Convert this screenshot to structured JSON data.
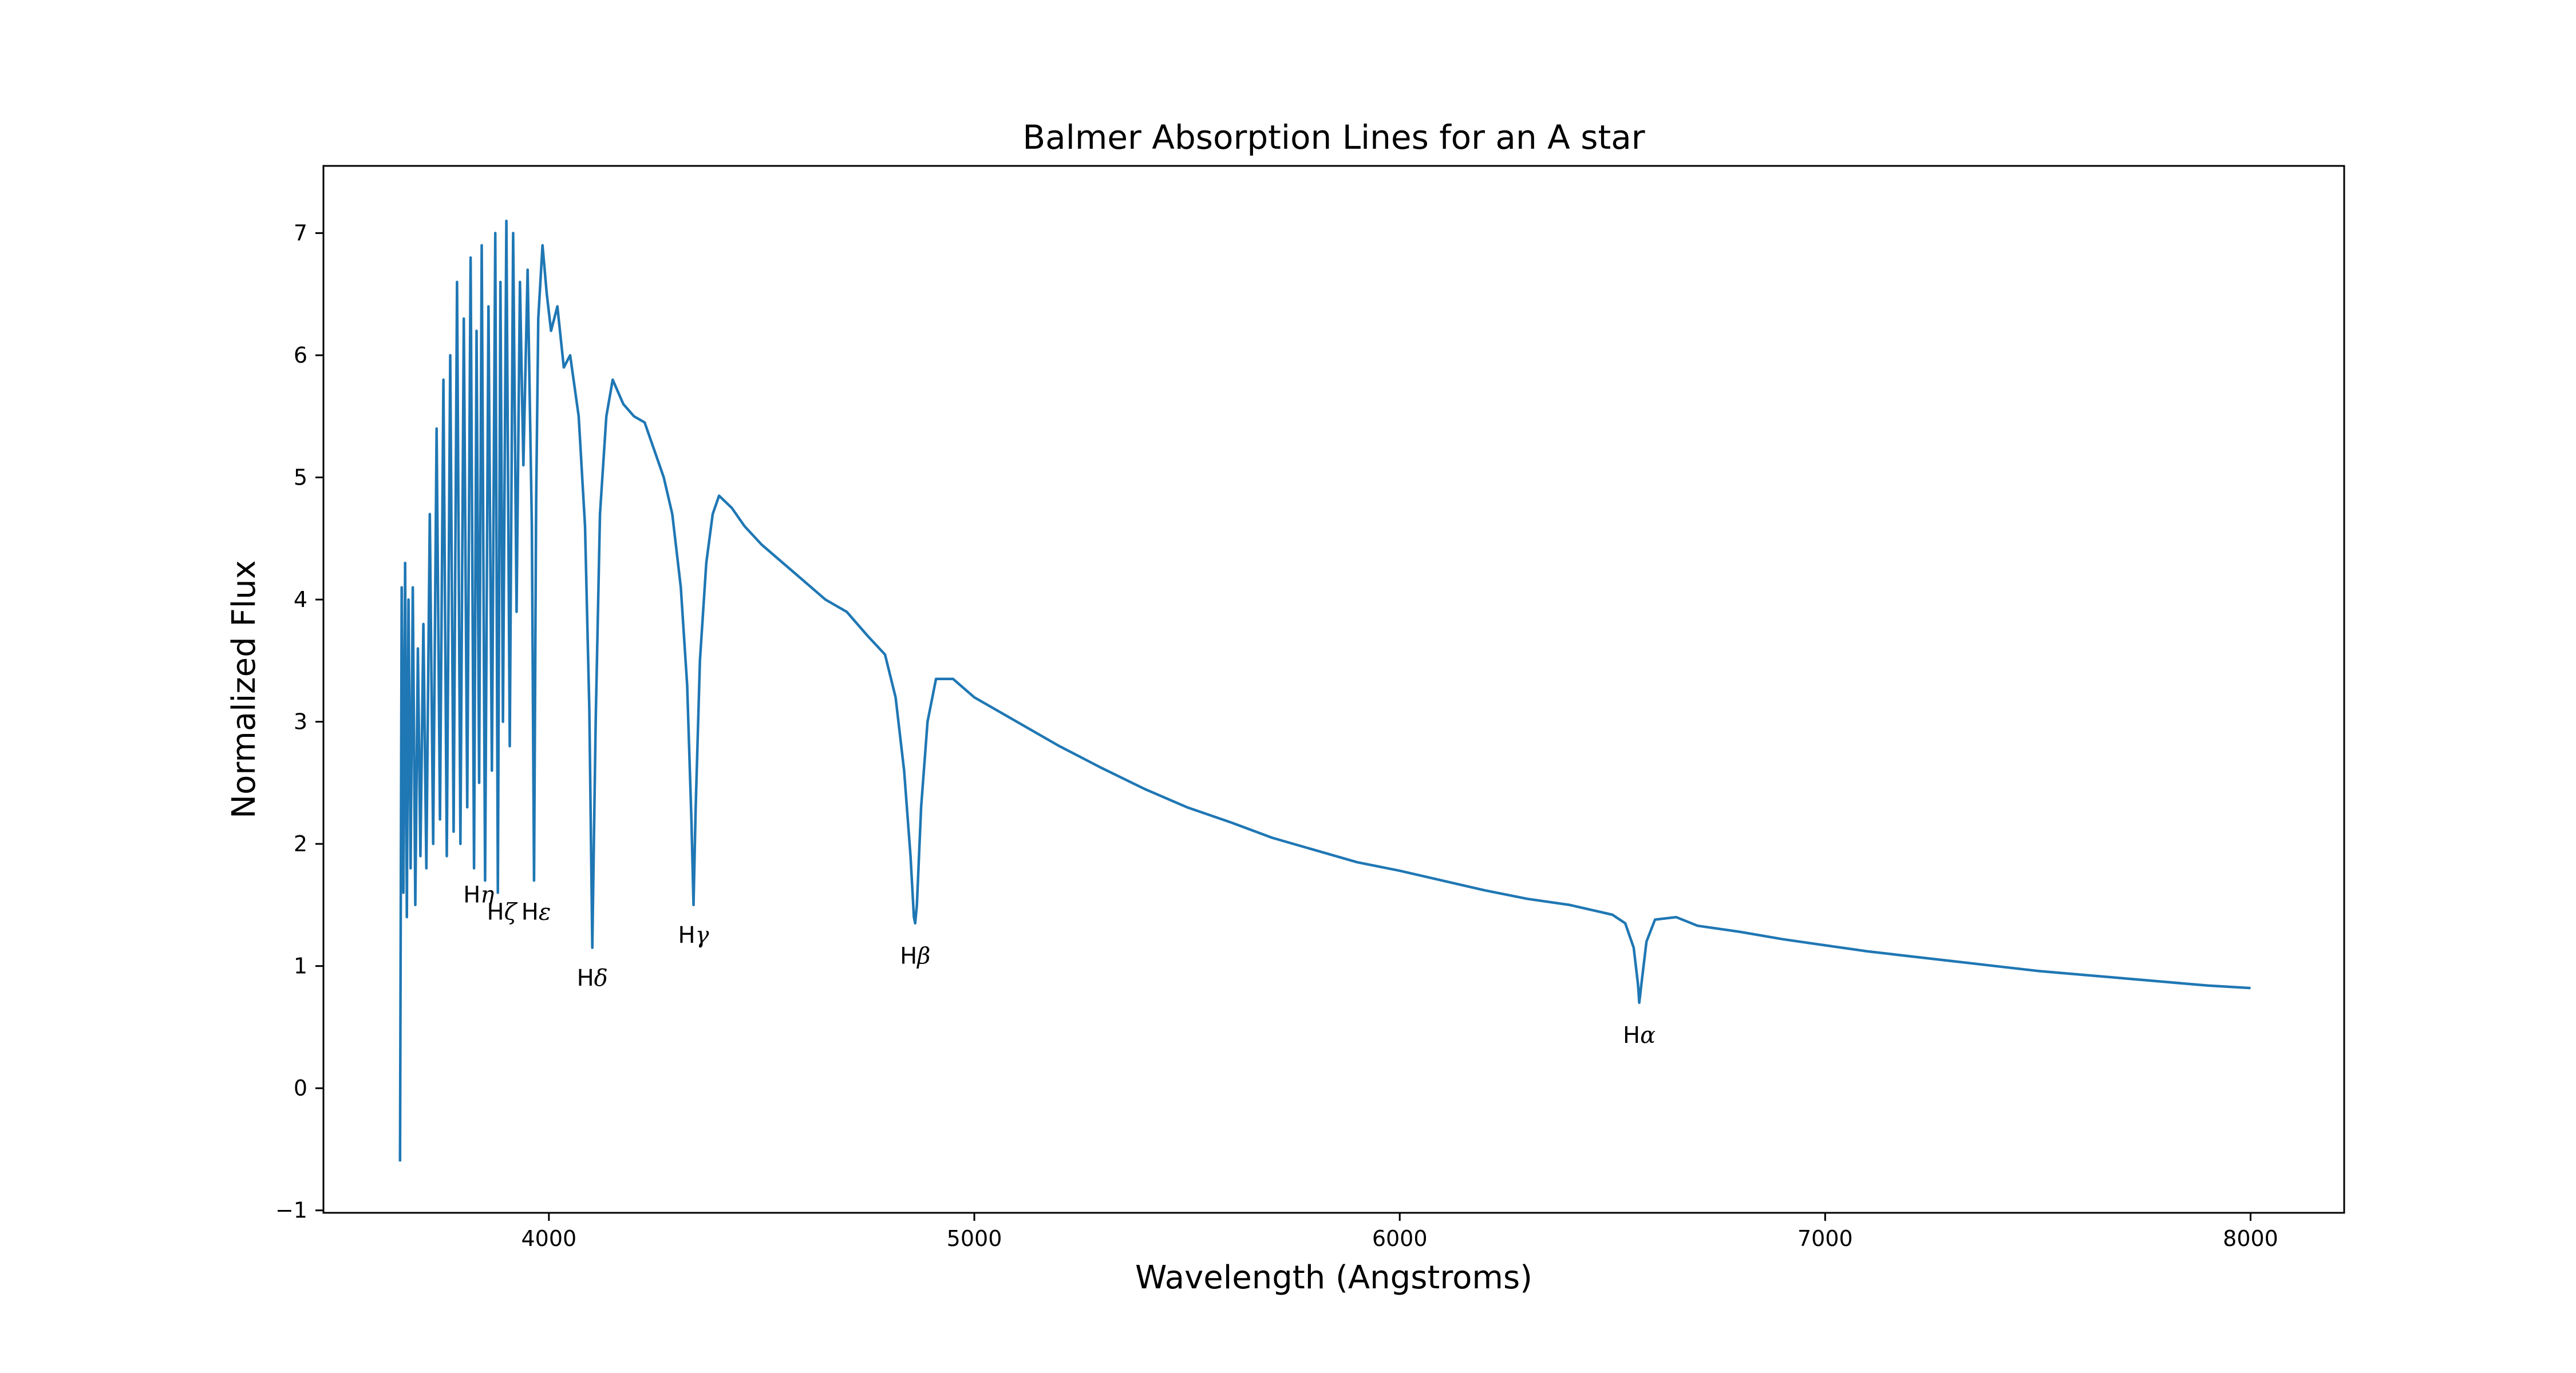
{
  "chart_data": {
    "type": "line",
    "title": "Balmer Absorption Lines for an A star",
    "xlabel": "Wavelength (Angstroms)",
    "ylabel": "Normalized Flux",
    "xlim": [
      3470,
      8220
    ],
    "ylim": [
      -1.02,
      7.55
    ],
    "xticks": [
      4000,
      5000,
      6000,
      7000,
      8000
    ],
    "xtick_labels": [
      "4000",
      "5000",
      "6000",
      "7000",
      "8000"
    ],
    "yticks": [
      -1,
      0,
      1,
      2,
      3,
      4,
      5,
      6,
      7
    ],
    "ytick_labels": [
      "−1",
      "0",
      "1",
      "2",
      "3",
      "4",
      "5",
      "6",
      "7"
    ],
    "grid": false,
    "color": "#1f77b4",
    "series": [
      {
        "x": [
          3650,
          3654,
          3658,
          3662,
          3666,
          3670,
          3675,
          3680,
          3686,
          3692,
          3698,
          3705,
          3712,
          3720,
          3728,
          3736,
          3744,
          3752,
          3760,
          3768,
          3776,
          3784,
          3792,
          3800,
          3808,
          3816,
          3824,
          3830,
          3836,
          3842,
          3850,
          3858,
          3866,
          3874,
          3880,
          3886,
          3892,
          3900,
          3908,
          3916,
          3924,
          3932,
          3940,
          3950,
          3960,
          3965,
          3970,
          3975,
          3985,
          3995,
          4005,
          4020,
          4035,
          4050,
          4070,
          4085,
          4095,
          4102,
          4110,
          4120,
          4135,
          4150,
          4175,
          4200,
          4225,
          4250,
          4270,
          4290,
          4310,
          4325,
          4335,
          4340,
          4345,
          4355,
          4370,
          4385,
          4400,
          4430,
          4460,
          4500,
          4550,
          4600,
          4650,
          4700,
          4750,
          4790,
          4815,
          4835,
          4850,
          4858,
          4861,
          4865,
          4875,
          4890,
          4910,
          4950,
          5000,
          5100,
          5200,
          5300,
          5400,
          5500,
          5600,
          5700,
          5800,
          5900,
          6000,
          6100,
          6200,
          6300,
          6400,
          6450,
          6500,
          6530,
          6550,
          6560,
          6563,
          6568,
          6580,
          6600,
          6650,
          6700,
          6800,
          6900,
          7000,
          7100,
          7200,
          7300,
          7400,
          7500,
          7600,
          7700,
          7800,
          7900,
          8000
        ],
        "y": [
          -0.6,
          4.1,
          1.6,
          4.3,
          1.4,
          4.0,
          1.8,
          4.1,
          1.5,
          3.6,
          1.9,
          3.8,
          1.8,
          4.7,
          2.0,
          5.4,
          2.2,
          5.8,
          1.9,
          6.0,
          2.1,
          6.6,
          2.0,
          6.3,
          2.3,
          6.8,
          1.8,
          6.2,
          2.5,
          6.9,
          1.7,
          6.4,
          2.6,
          7.0,
          1.6,
          6.6,
          3.0,
          7.1,
          2.8,
          7.0,
          3.9,
          6.6,
          5.1,
          6.7,
          4.6,
          1.7,
          4.8,
          6.3,
          6.9,
          6.5,
          6.2,
          6.4,
          5.9,
          6.0,
          5.5,
          4.6,
          3.1,
          1.15,
          3.0,
          4.7,
          5.5,
          5.8,
          5.6,
          5.5,
          5.45,
          5.2,
          5.0,
          4.7,
          4.1,
          3.3,
          2.2,
          1.5,
          2.3,
          3.5,
          4.3,
          4.7,
          4.85,
          4.75,
          4.6,
          4.45,
          4.3,
          4.15,
          4.0,
          3.9,
          3.7,
          3.55,
          3.2,
          2.6,
          1.9,
          1.4,
          1.35,
          1.5,
          2.3,
          3.0,
          3.35,
          3.35,
          3.2,
          3.0,
          2.8,
          2.62,
          2.45,
          2.3,
          2.18,
          2.05,
          1.95,
          1.85,
          1.78,
          1.7,
          1.62,
          1.55,
          1.5,
          1.46,
          1.42,
          1.35,
          1.15,
          0.85,
          0.7,
          0.85,
          1.2,
          1.38,
          1.4,
          1.33,
          1.28,
          1.22,
          1.17,
          1.12,
          1.08,
          1.04,
          1.0,
          0.96,
          0.93,
          0.9,
          0.87,
          0.84,
          0.82
        ]
      }
    ],
    "annotations": [
      {
        "base": "H",
        "greek": "η",
        "x": 3835,
        "y": 1.52
      },
      {
        "base": "H",
        "greek": "ζ",
        "x": 3889,
        "y": 1.38
      },
      {
        "base": "H",
        "greek": "ε",
        "x": 3970,
        "y": 1.38
      },
      {
        "base": "H",
        "greek": "δ",
        "x": 4102,
        "y": 0.84
      },
      {
        "base": "H",
        "greek": "γ",
        "x": 4340,
        "y": 1.19
      },
      {
        "base": "H",
        "greek": "β",
        "x": 4861,
        "y": 1.02
      },
      {
        "base": "H",
        "greek": "α",
        "x": 6563,
        "y": 0.37
      }
    ]
  }
}
